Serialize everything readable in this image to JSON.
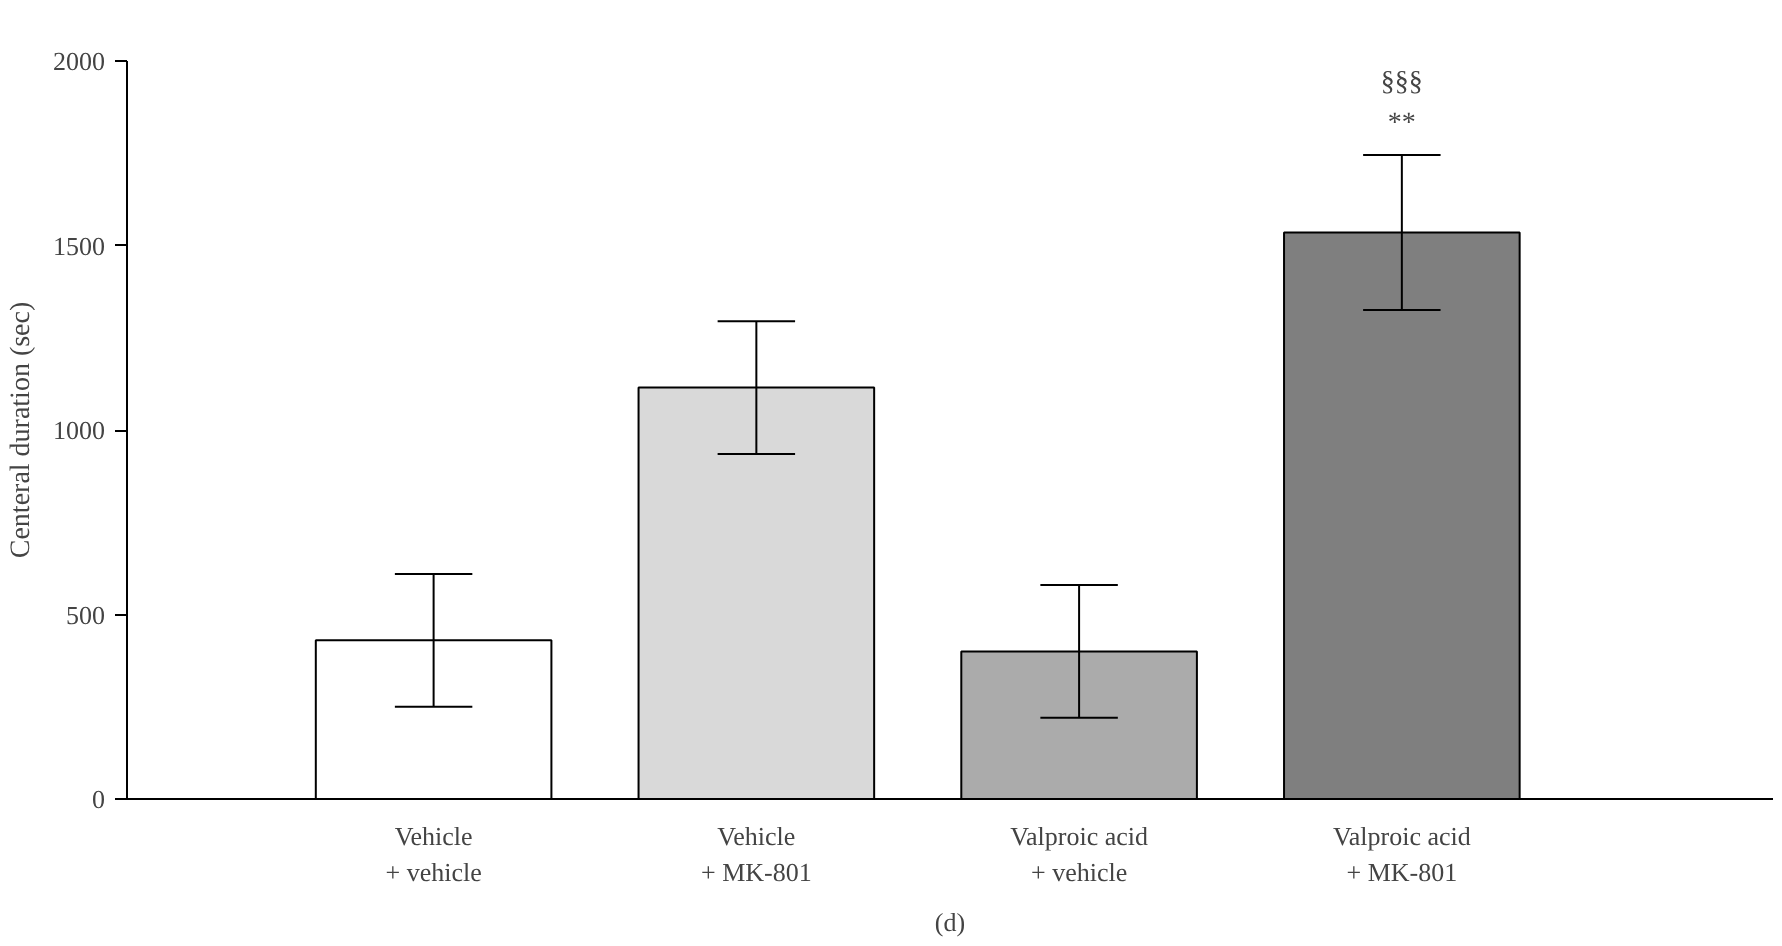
{
  "chart_data": {
    "type": "bar",
    "ylabel": "Centeral duration (sec)",
    "categories": [
      "Vehicle\n+ vehicle",
      "Vehicle\n+ MK-801",
      "Valproic acid\n+ vehicle",
      "Valproic acid\n+ MK-801"
    ],
    "values": [
      430,
      1115,
      400,
      1535
    ],
    "errors": [
      180,
      180,
      180,
      210
    ],
    "colors": [
      "#ffffff",
      "#d9d9d9",
      "#ababab",
      "#7f7f7f"
    ],
    "ylim": [
      0,
      2000
    ],
    "yticks": [
      0,
      500,
      1000,
      1500,
      2000
    ],
    "grid": false,
    "annotations": [
      "**",
      "§§§",
      "(d)"
    ]
  }
}
